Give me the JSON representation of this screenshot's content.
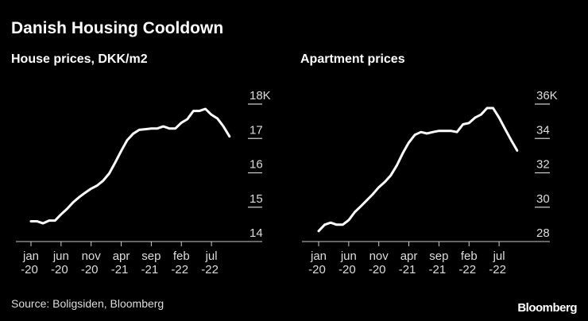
{
  "title": "Danish Housing Cooldown",
  "source": "Source: Boligsiden, Bloomberg",
  "logo": "Bloomberg",
  "colors": {
    "background": "#000000",
    "line": "#ffffff",
    "text": "#dddddd"
  },
  "chart_data": [
    {
      "type": "line",
      "title": "House prices, DKK/m2",
      "x_ticks": [
        [
          "jan",
          "-20"
        ],
        [
          "jun",
          "-20"
        ],
        [
          "nov",
          "-20"
        ],
        [
          "apr",
          "-21"
        ],
        [
          "sep",
          "-21"
        ],
        [
          "feb",
          "-22"
        ],
        [
          "jul",
          "-22"
        ]
      ],
      "x_start": "2020-01",
      "x_step": "month",
      "y_ticks": [
        "14",
        "15",
        "16",
        "17",
        "18K"
      ],
      "ylim": [
        14,
        18
      ],
      "grid": false,
      "values": [
        14.59,
        14.59,
        14.53,
        14.61,
        14.61,
        14.79,
        14.95,
        15.14,
        15.29,
        15.42,
        15.54,
        15.63,
        15.77,
        15.98,
        16.3,
        16.64,
        16.95,
        17.14,
        17.25,
        17.27,
        17.29,
        17.29,
        17.35,
        17.29,
        17.29,
        17.46,
        17.56,
        17.8,
        17.8,
        17.86,
        17.69,
        17.58,
        17.35,
        17.06
      ]
    },
    {
      "type": "line",
      "title": "Apartment prices",
      "x_ticks": [
        [
          "jan",
          "-20"
        ],
        [
          "jun",
          "-20"
        ],
        [
          "nov",
          "-20"
        ],
        [
          "apr",
          "-21"
        ],
        [
          "sep",
          "-21"
        ],
        [
          "feb",
          "-22"
        ],
        [
          "jul",
          "-22"
        ]
      ],
      "x_start": "2020-01",
      "x_step": "month",
      "y_ticks": [
        "28",
        "30",
        "32",
        "34",
        "36K"
      ],
      "ylim": [
        28,
        36
      ],
      "grid": false,
      "values": [
        28.61,
        28.98,
        29.1,
        28.98,
        28.98,
        29.25,
        29.71,
        30.05,
        30.4,
        30.75,
        31.16,
        31.47,
        31.85,
        32.43,
        33.15,
        33.76,
        34.21,
        34.37,
        34.29,
        34.37,
        34.44,
        34.44,
        34.44,
        34.37,
        34.82,
        34.9,
        35.21,
        35.39,
        35.77,
        35.77,
        35.21,
        34.55,
        33.91,
        33.3
      ]
    }
  ]
}
